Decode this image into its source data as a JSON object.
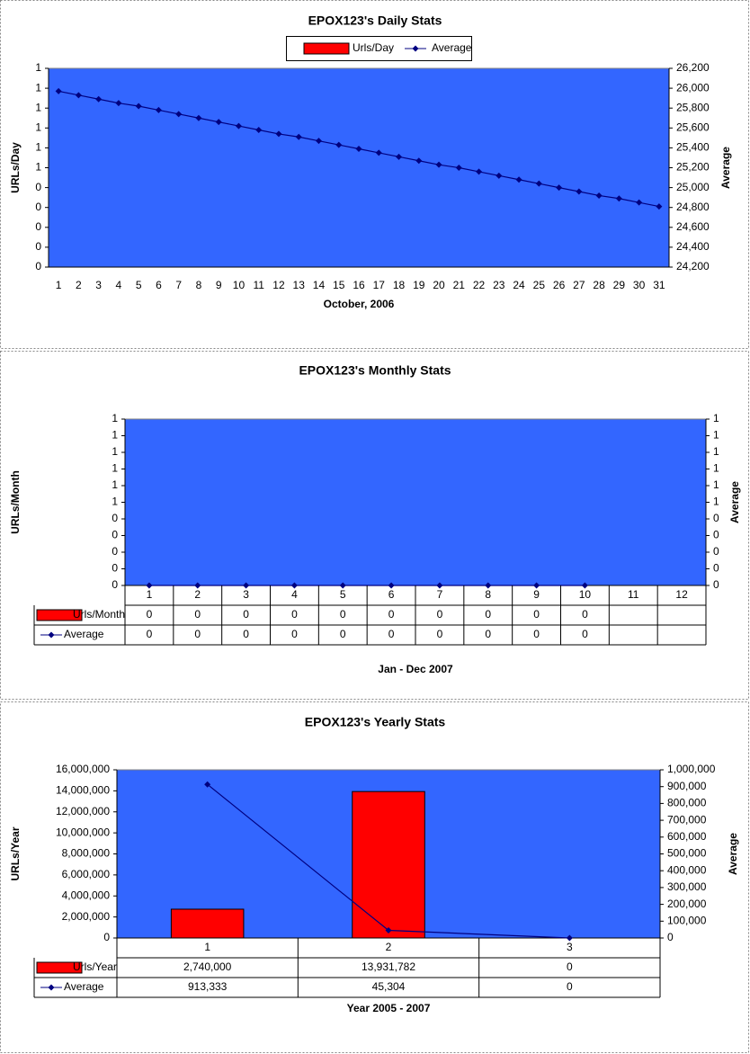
{
  "chart_data": [
    {
      "type": "bar",
      "title": "EPOX123's Daily Stats",
      "xlabel": "October, 2006",
      "ylabel": "URLs/Day",
      "y2label": "Average",
      "legend": "top",
      "plot_color": "#3366ff",
      "data_table": false,
      "categories": [
        "1",
        "2",
        "3",
        "4",
        "5",
        "6",
        "7",
        "8",
        "9",
        "10",
        "11",
        "12",
        "13",
        "14",
        "15",
        "16",
        "17",
        "18",
        "19",
        "20",
        "21",
        "22",
        "23",
        "24",
        "25",
        "26",
        "27",
        "28",
        "29",
        "30",
        "31"
      ],
      "series": [
        {
          "name": "Urls/Day",
          "type": "bar",
          "color": "#ff0000",
          "values": [
            0,
            0,
            0,
            0,
            0,
            0,
            0,
            0,
            0,
            0,
            0,
            0,
            0,
            0,
            0,
            0,
            0,
            0,
            0,
            0,
            0,
            0,
            0,
            0,
            0,
            0,
            0,
            0,
            0,
            0,
            0
          ]
        },
        {
          "name": "Average",
          "type": "line",
          "axis": "y2",
          "color": "#000080",
          "values": [
            25970,
            25930,
            25890,
            25850,
            25820,
            25780,
            25740,
            25700,
            25660,
            25620,
            25580,
            25540,
            25510,
            25470,
            25430,
            25390,
            25350,
            25310,
            25270,
            25230,
            25200,
            25160,
            25120,
            25080,
            25040,
            25000,
            24960,
            24920,
            24890,
            24850,
            24810
          ]
        }
      ],
      "ylim": [
        0,
        1
      ],
      "yticks": [
        {
          "value": 0,
          "label": "0"
        },
        {
          "value": 0.1,
          "label": "0"
        },
        {
          "value": 0.2,
          "label": "0"
        },
        {
          "value": 0.3,
          "label": "0"
        },
        {
          "value": 0.4,
          "label": "0"
        },
        {
          "value": 0.5,
          "label": "1"
        },
        {
          "value": 0.6,
          "label": "1"
        },
        {
          "value": 0.7,
          "label": "1"
        },
        {
          "value": 0.8,
          "label": "1"
        },
        {
          "value": 0.9,
          "label": "1"
        },
        {
          "value": 1,
          "label": "1"
        }
      ],
      "y2lim": [
        24200,
        26200
      ],
      "y2ticks": [
        {
          "value": 24200,
          "label": "24,200"
        },
        {
          "value": 24400,
          "label": "24,400"
        },
        {
          "value": 24600,
          "label": "24,600"
        },
        {
          "value": 24800,
          "label": "24,800"
        },
        {
          "value": 25000,
          "label": "25,000"
        },
        {
          "value": 25200,
          "label": "25,200"
        },
        {
          "value": 25400,
          "label": "25,400"
        },
        {
          "value": 25600,
          "label": "25,600"
        },
        {
          "value": 25800,
          "label": "25,800"
        },
        {
          "value": 26000,
          "label": "26,000"
        },
        {
          "value": 26200,
          "label": "26,200"
        }
      ]
    },
    {
      "type": "bar",
      "title": "EPOX123's Monthly Stats",
      "xlabel": "Jan - Dec 2007",
      "ylabel": "URLs/Month",
      "y2label": "Average",
      "plot_color": "#3366ff",
      "data_table": true,
      "categories": [
        "1",
        "2",
        "3",
        "4",
        "5",
        "6",
        "7",
        "8",
        "9",
        "10",
        "11",
        "12"
      ],
      "series": [
        {
          "name": "Urls/Month",
          "type": "bar",
          "color": "#ff0000",
          "values": [
            0,
            0,
            0,
            0,
            0,
            0,
            0,
            0,
            0,
            0,
            null,
            null
          ]
        },
        {
          "name": "Average",
          "type": "line",
          "axis": "y2",
          "color": "#000080",
          "values": [
            0,
            0,
            0,
            0,
            0,
            0,
            0,
            0,
            0,
            0,
            null,
            null
          ]
        }
      ],
      "ylim": [
        0,
        1
      ],
      "yticks": [
        {
          "value": 0,
          "label": "0"
        },
        {
          "value": 0.1,
          "label": "0"
        },
        {
          "value": 0.2,
          "label": "0"
        },
        {
          "value": 0.3,
          "label": "0"
        },
        {
          "value": 0.4,
          "label": "0"
        },
        {
          "value": 0.5,
          "label": "1"
        },
        {
          "value": 0.6,
          "label": "1"
        },
        {
          "value": 0.7,
          "label": "1"
        },
        {
          "value": 0.8,
          "label": "1"
        },
        {
          "value": 0.9,
          "label": "1"
        },
        {
          "value": 1,
          "label": "1"
        }
      ],
      "y2lim": [
        0,
        1
      ],
      "y2ticks": [
        {
          "value": 0,
          "label": "0"
        },
        {
          "value": 0.1,
          "label": "0"
        },
        {
          "value": 0.2,
          "label": "0"
        },
        {
          "value": 0.3,
          "label": "0"
        },
        {
          "value": 0.4,
          "label": "0"
        },
        {
          "value": 0.5,
          "label": "1"
        },
        {
          "value": 0.6,
          "label": "1"
        },
        {
          "value": 0.7,
          "label": "1"
        },
        {
          "value": 0.8,
          "label": "1"
        },
        {
          "value": 0.9,
          "label": "1"
        },
        {
          "value": 1,
          "label": "1"
        }
      ]
    },
    {
      "type": "bar",
      "title": "EPOX123's Yearly Stats",
      "xlabel": "Year 2005 - 2007",
      "ylabel": "URLs/Year",
      "y2label": "Average",
      "plot_color": "#3366ff",
      "data_table": true,
      "categories": [
        "1",
        "2",
        "3"
      ],
      "series": [
        {
          "name": "Urls/Year",
          "type": "bar",
          "color": "#ff0000",
          "values": [
            2740000,
            13931782,
            0
          ],
          "value_labels": [
            "2,740,000",
            "13,931,782",
            "0"
          ]
        },
        {
          "name": "Average",
          "type": "line",
          "axis": "y2",
          "color": "#000080",
          "values": [
            913333,
            45304,
            0
          ],
          "value_labels": [
            "913,333",
            "45,304",
            "0"
          ]
        }
      ],
      "ylim": [
        0,
        16000000
      ],
      "yticks": [
        0,
        {
          "value": 2000000,
          "label": "2,000,000"
        },
        {
          "value": 4000000,
          "label": "4,000,000"
        },
        {
          "value": 6000000,
          "label": "6,000,000"
        },
        {
          "value": 8000000,
          "label": "8,000,000"
        },
        {
          "value": 10000000,
          "label": "10,000,000"
        },
        {
          "value": 12000000,
          "label": "12,000,000"
        },
        {
          "value": 14000000,
          "label": "14,000,000"
        },
        {
          "value": 16000000,
          "label": "16,000,000"
        }
      ],
      "y2lim": [
        0,
        1000000
      ],
      "y2ticks": [
        0,
        {
          "value": 100000,
          "label": "100,000"
        },
        {
          "value": 200000,
          "label": "200,000"
        },
        {
          "value": 300000,
          "label": "300,000"
        },
        {
          "value": 400000,
          "label": "400,000"
        },
        {
          "value": 500000,
          "label": "500,000"
        },
        {
          "value": 600000,
          "label": "600,000"
        },
        {
          "value": 700000,
          "label": "700,000"
        },
        {
          "value": 800000,
          "label": "800,000"
        },
        {
          "value": 900000,
          "label": "900,000"
        },
        {
          "value": 1000000,
          "label": "1,000,000"
        }
      ]
    }
  ]
}
